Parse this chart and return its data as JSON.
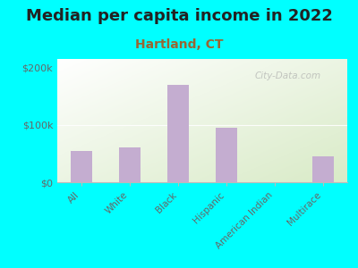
{
  "title": "Median per capita income in 2022",
  "subtitle": "Hartland, CT",
  "categories": [
    "All",
    "White",
    "Black",
    "Hispanic",
    "American Indian",
    "Multirace"
  ],
  "values": [
    55000,
    60000,
    170000,
    95000,
    0,
    45000
  ],
  "bar_color": "#c4add0",
  "background_color": "#00FFFF",
  "title_fontsize": 13,
  "subtitle_fontsize": 10,
  "ylabel_ticks": [
    0,
    100000,
    200000
  ],
  "ylabel_labels": [
    "$0",
    "$100k",
    "$200k"
  ],
  "ylim": [
    0,
    215000
  ],
  "watermark": "City-Data.com",
  "title_color": "#222222",
  "subtitle_color": "#996633",
  "tick_color": "#666666"
}
